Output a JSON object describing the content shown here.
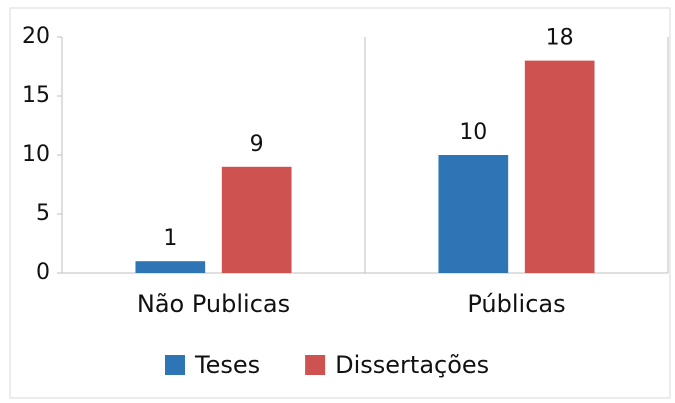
{
  "chart_data": {
    "type": "bar",
    "categories": [
      "Não Publicas",
      "Públicas"
    ],
    "series": [
      {
        "name": "Teses",
        "color": "#2e75b6",
        "values": [
          1,
          10
        ]
      },
      {
        "name": "Dissertações",
        "color": "#cd5250",
        "values": [
          9,
          18
        ]
      }
    ],
    "ylim": [
      0,
      20
    ],
    "yticks": [
      0,
      5,
      10,
      15,
      20
    ],
    "grid": false,
    "legend": "bottom"
  }
}
